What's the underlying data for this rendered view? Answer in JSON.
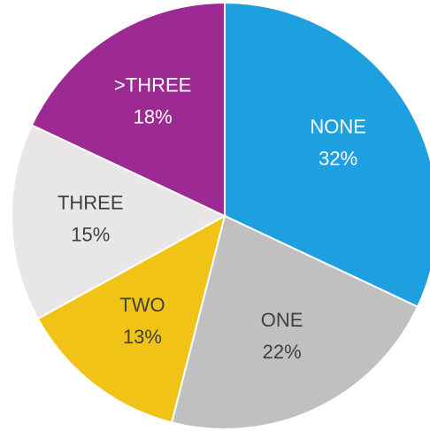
{
  "chart_data": {
    "type": "pie",
    "categories": [
      "NONE",
      "ONE",
      "TWO",
      "THREE",
      ">THREE"
    ],
    "values": [
      32,
      22,
      13,
      15,
      18
    ],
    "value_labels": [
      "32%",
      "22%",
      "13%",
      "15%",
      "18%"
    ],
    "colors": [
      "#1e9fdf",
      "#c0c0c0",
      "#f1c316",
      "#e8e6e6",
      "#9c2a92"
    ]
  }
}
